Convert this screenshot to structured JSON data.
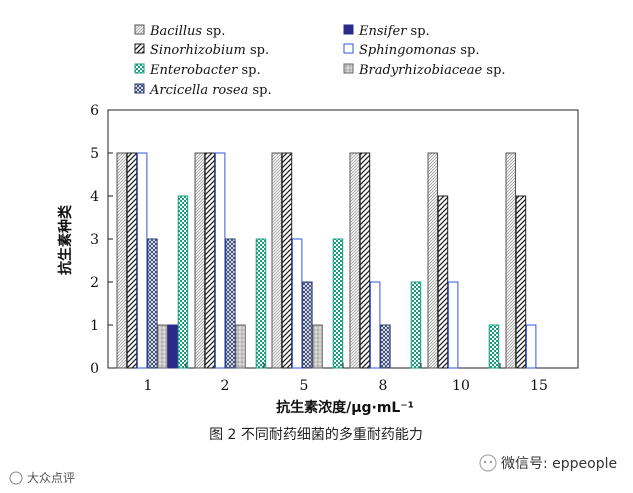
{
  "chart_data": {
    "type": "bar",
    "categories": [
      "1",
      "2",
      "5",
      "8",
      "10",
      "15"
    ],
    "xlabel": "抗生素浓度/μg·mL⁻¹",
    "ylabel": "抗生素种类",
    "ylim": [
      0,
      6
    ],
    "yticks": [
      "0",
      "1",
      "2",
      "3",
      "4",
      "5",
      "6"
    ],
    "grid": false,
    "legend_position": "top",
    "series": [
      {
        "name": "Bacillus",
        "suffix": " sp.",
        "pattern": "light-hatch",
        "values": [
          5,
          5,
          5,
          5,
          5,
          5
        ]
      },
      {
        "name": "Ensifer",
        "suffix": " sp.",
        "pattern": "solid-navy",
        "values": [
          1,
          0,
          0,
          0,
          0,
          0
        ]
      },
      {
        "name": "Sinorhizobium",
        "suffix": " sp.",
        "pattern": "diag-stripe",
        "values": [
          5,
          5,
          5,
          5,
          4,
          4
        ]
      },
      {
        "name": "Sphingomonas",
        "suffix": " sp.",
        "pattern": "blue-outline",
        "values": [
          5,
          5,
          3,
          2,
          2,
          1
        ]
      },
      {
        "name": "Enterobacter",
        "suffix": " sp.",
        "pattern": "teal-grid",
        "values": [
          4,
          3,
          3,
          2,
          1,
          0
        ]
      },
      {
        "name": "Bradyrhizobiaceae",
        "suffix": " sp.",
        "pattern": "gray-grid",
        "values": [
          1,
          1,
          1,
          0,
          0,
          0
        ]
      },
      {
        "name": "Arcicella rosea",
        "suffix": " sp.",
        "pattern": "cross-hatch",
        "values": [
          3,
          3,
          2,
          1,
          0,
          0
        ]
      }
    ]
  },
  "caption": "图 2  不同耐药细菌的多重耐药能力",
  "watermark_left": "大众点评",
  "watermark_right": "微信号: eppeople",
  "colors": {
    "navy": "#2b2a8a",
    "blue": "#3355dd",
    "teal": "#1a9c7f",
    "ink": "#222222"
  }
}
